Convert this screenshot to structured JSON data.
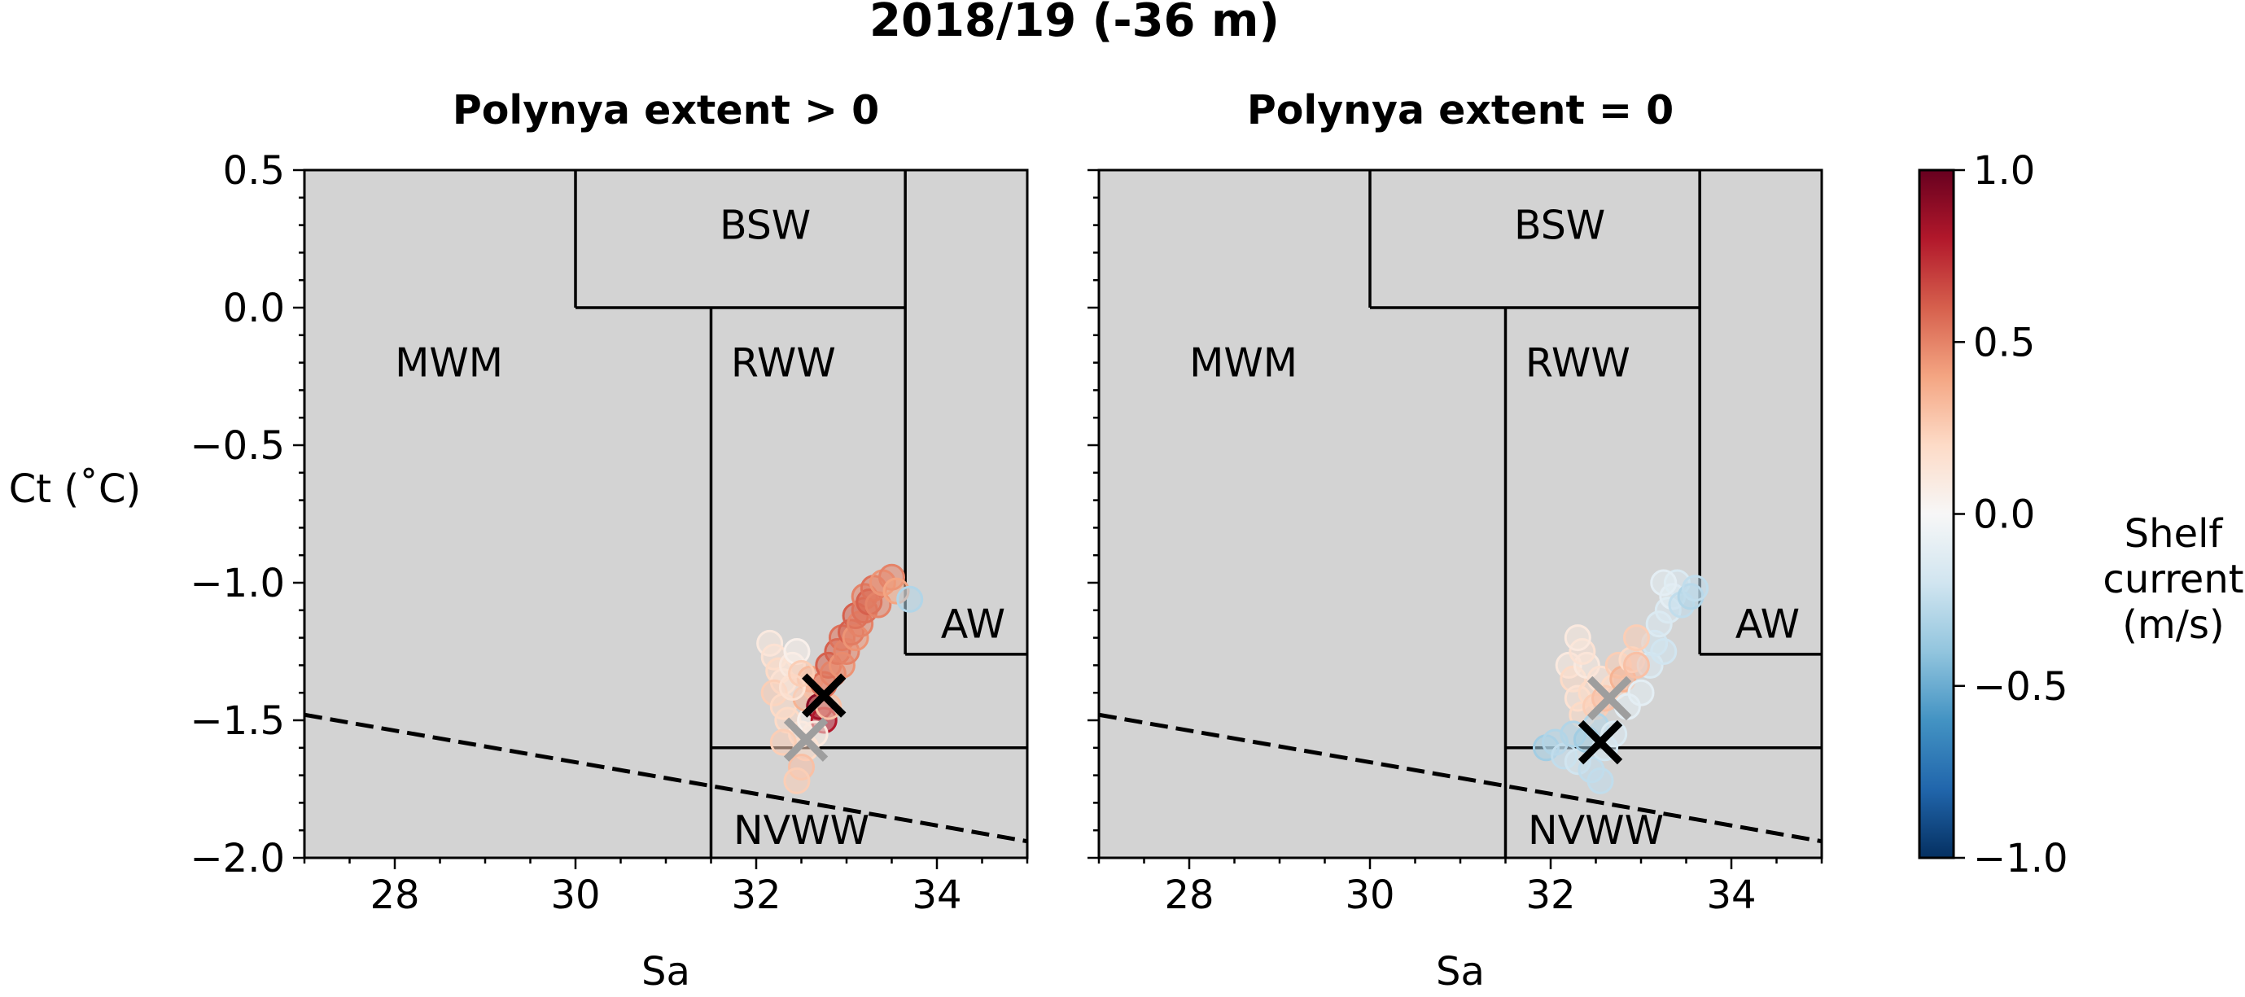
{
  "figure": {
    "suptitle": "2018/19 (-36 m)"
  },
  "chart_data": [
    {
      "type": "scatter",
      "title": "Polynya extent > 0",
      "xlabel": "Sa",
      "ylabel": "Ct (˚C)",
      "xlim": [
        27,
        35
      ],
      "ylim": [
        -2.0,
        0.5
      ],
      "xticks": [
        "28",
        "30",
        "32",
        "34"
      ],
      "yticks": [
        "0.5",
        "0.0",
        "−0.5",
        "−1.0",
        "−1.5",
        "−2.0"
      ],
      "background": "#d3d3d3",
      "grid": false,
      "regions": [
        {
          "label": "MWM",
          "label_at": [
            28.6,
            -0.2
          ]
        },
        {
          "label": "BSW",
          "label_at": [
            32.1,
            0.3
          ]
        },
        {
          "label": "RWW",
          "label_at": [
            32.3,
            -0.2
          ]
        },
        {
          "label": "AW",
          "label_at": [
            34.4,
            -1.15
          ]
        },
        {
          "label": "NVWW",
          "label_at": [
            32.5,
            -1.9
          ]
        }
      ],
      "boundaries": [
        {
          "x": [
            30,
            30
          ],
          "y": [
            0.5,
            0.0
          ]
        },
        {
          "x": [
            30,
            33.65
          ],
          "y": [
            0.0,
            0.0
          ]
        },
        {
          "x": [
            31.5,
            31.5
          ],
          "y": [
            0.0,
            -2.0
          ]
        },
        {
          "x": [
            33.65,
            33.65
          ],
          "y": [
            0.5,
            -1.26
          ]
        },
        {
          "x": [
            33.65,
            35
          ],
          "y": [
            -1.26,
            -1.26
          ]
        },
        {
          "x": [
            31.5,
            35
          ],
          "y": [
            -1.6,
            -1.6
          ]
        }
      ],
      "freezing_line": {
        "x": [
          27,
          35
        ],
        "y": [
          -1.48,
          -1.94
        ],
        "style": "dashed"
      },
      "points": [
        {
          "x": 32.15,
          "y": -1.22,
          "c": 0.1
        },
        {
          "x": 32.2,
          "y": -1.27,
          "c": 0.15
        },
        {
          "x": 32.25,
          "y": -1.32,
          "c": 0.2
        },
        {
          "x": 32.3,
          "y": -1.36,
          "c": 0.15
        },
        {
          "x": 32.2,
          "y": -1.4,
          "c": 0.25
        },
        {
          "x": 32.3,
          "y": -1.45,
          "c": 0.2
        },
        {
          "x": 32.4,
          "y": -1.3,
          "c": 0.1
        },
        {
          "x": 32.45,
          "y": -1.25,
          "c": 0.05
        },
        {
          "x": 32.35,
          "y": -1.5,
          "c": 0.2
        },
        {
          "x": 32.5,
          "y": -1.55,
          "c": 0.15
        },
        {
          "x": 32.55,
          "y": -1.6,
          "c": 0.2
        },
        {
          "x": 32.5,
          "y": -1.67,
          "c": 0.3
        },
        {
          "x": 32.45,
          "y": -1.72,
          "c": 0.25
        },
        {
          "x": 32.6,
          "y": -1.5,
          "c": 0.05
        },
        {
          "x": 32.55,
          "y": -1.42,
          "c": 0.35
        },
        {
          "x": 32.6,
          "y": -1.35,
          "c": 0.4
        },
        {
          "x": 32.65,
          "y": -1.38,
          "c": 0.3
        },
        {
          "x": 32.7,
          "y": -1.45,
          "c": 0.9
        },
        {
          "x": 32.75,
          "y": -1.5,
          "c": 0.8
        },
        {
          "x": 32.8,
          "y": -1.45,
          "c": 0.3
        },
        {
          "x": 32.75,
          "y": -1.37,
          "c": 0.55
        },
        {
          "x": 32.8,
          "y": -1.3,
          "c": 0.6
        },
        {
          "x": 32.85,
          "y": -1.33,
          "c": 0.5
        },
        {
          "x": 32.9,
          "y": -1.25,
          "c": 0.6
        },
        {
          "x": 32.95,
          "y": -1.2,
          "c": 0.55
        },
        {
          "x": 32.95,
          "y": -1.3,
          "c": 0.45
        },
        {
          "x": 33.0,
          "y": -1.25,
          "c": 0.5
        },
        {
          "x": 33.05,
          "y": -1.18,
          "c": 0.6
        },
        {
          "x": 33.1,
          "y": -1.2,
          "c": 0.45
        },
        {
          "x": 33.1,
          "y": -1.12,
          "c": 0.6
        },
        {
          "x": 33.15,
          "y": -1.15,
          "c": 0.5
        },
        {
          "x": 33.2,
          "y": -1.1,
          "c": 0.55
        },
        {
          "x": 33.2,
          "y": -1.05,
          "c": 0.5
        },
        {
          "x": 33.25,
          "y": -1.07,
          "c": 0.6
        },
        {
          "x": 33.3,
          "y": -1.02,
          "c": 0.55
        },
        {
          "x": 33.35,
          "y": -1.08,
          "c": 0.5
        },
        {
          "x": 33.4,
          "y": -1.0,
          "c": 0.45
        },
        {
          "x": 33.5,
          "y": -0.98,
          "c": 0.5
        },
        {
          "x": 33.55,
          "y": -1.03,
          "c": 0.4
        },
        {
          "x": 33.7,
          "y": -1.06,
          "c": -0.3
        },
        {
          "x": 32.3,
          "y": -1.58,
          "c": 0.25
        },
        {
          "x": 32.4,
          "y": -1.38,
          "c": 0.15
        },
        {
          "x": 32.5,
          "y": -1.33,
          "c": 0.25
        },
        {
          "x": 32.65,
          "y": -1.55,
          "c": 0.1
        }
      ],
      "colorscale": "RdBu_r",
      "markers": [
        {
          "x": 32.55,
          "y": -1.57,
          "color": "#9e9e9e"
        },
        {
          "x": 32.75,
          "y": -1.41,
          "color": "#000000"
        }
      ]
    },
    {
      "type": "scatter",
      "title": "Polynya extent = 0",
      "xlabel": "Sa",
      "ylabel": "",
      "xlim": [
        27,
        35
      ],
      "ylim": [
        -2.0,
        0.5
      ],
      "xticks": [
        "28",
        "30",
        "32",
        "34"
      ],
      "yticks": [],
      "background": "#d3d3d3",
      "grid": false,
      "regions": [
        {
          "label": "MWM",
          "label_at": [
            28.6,
            -0.2
          ]
        },
        {
          "label": "BSW",
          "label_at": [
            32.1,
            0.3
          ]
        },
        {
          "label": "RWW",
          "label_at": [
            32.3,
            -0.2
          ]
        },
        {
          "label": "AW",
          "label_at": [
            34.4,
            -1.15
          ]
        },
        {
          "label": "NVWW",
          "label_at": [
            32.5,
            -1.9
          ]
        }
      ],
      "boundaries": [
        {
          "x": [
            30,
            30
          ],
          "y": [
            0.5,
            0.0
          ]
        },
        {
          "x": [
            30,
            33.65
          ],
          "y": [
            0.0,
            0.0
          ]
        },
        {
          "x": [
            31.5,
            31.5
          ],
          "y": [
            0.0,
            -2.0
          ]
        },
        {
          "x": [
            33.65,
            33.65
          ],
          "y": [
            0.5,
            -1.26
          ]
        },
        {
          "x": [
            33.65,
            35
          ],
          "y": [
            -1.26,
            -1.26
          ]
        },
        {
          "x": [
            31.5,
            35
          ],
          "y": [
            -1.6,
            -1.6
          ]
        }
      ],
      "freezing_line": {
        "x": [
          27,
          35
        ],
        "y": [
          -1.48,
          -1.94
        ],
        "style": "dashed"
      },
      "points": [
        {
          "x": 32.2,
          "y": -1.3,
          "c": 0.1
        },
        {
          "x": 32.25,
          "y": -1.35,
          "c": 0.2
        },
        {
          "x": 32.3,
          "y": -1.42,
          "c": 0.15
        },
        {
          "x": 32.35,
          "y": -1.48,
          "c": 0.2
        },
        {
          "x": 32.4,
          "y": -1.3,
          "c": 0.1
        },
        {
          "x": 32.45,
          "y": -1.4,
          "c": 0.2
        },
        {
          "x": 32.5,
          "y": -1.45,
          "c": 0.25
        },
        {
          "x": 32.55,
          "y": -1.35,
          "c": 0.15
        },
        {
          "x": 32.6,
          "y": -1.42,
          "c": 0.3
        },
        {
          "x": 32.7,
          "y": -1.38,
          "c": 0.2
        },
        {
          "x": 32.75,
          "y": -1.3,
          "c": 0.25
        },
        {
          "x": 32.8,
          "y": -1.35,
          "c": 0.35
        },
        {
          "x": 32.9,
          "y": -1.28,
          "c": 0.2
        },
        {
          "x": 32.35,
          "y": -1.25,
          "c": 0.15
        },
        {
          "x": 32.3,
          "y": -1.2,
          "c": 0.1
        },
        {
          "x": 31.95,
          "y": -1.6,
          "c": -0.35
        },
        {
          "x": 32.05,
          "y": -1.58,
          "c": -0.3
        },
        {
          "x": 32.15,
          "y": -1.63,
          "c": -0.25
        },
        {
          "x": 32.25,
          "y": -1.55,
          "c": -0.3
        },
        {
          "x": 32.3,
          "y": -1.65,
          "c": -0.2
        },
        {
          "x": 32.4,
          "y": -1.57,
          "c": -0.35
        },
        {
          "x": 32.45,
          "y": -1.68,
          "c": -0.25
        },
        {
          "x": 32.5,
          "y": -1.52,
          "c": -0.3
        },
        {
          "x": 32.6,
          "y": -1.6,
          "c": -0.2
        },
        {
          "x": 32.55,
          "y": -1.72,
          "c": -0.25
        },
        {
          "x": 32.7,
          "y": -1.55,
          "c": -0.15
        },
        {
          "x": 32.85,
          "y": -1.45,
          "c": -0.1
        },
        {
          "x": 33.0,
          "y": -1.4,
          "c": -0.1
        },
        {
          "x": 33.1,
          "y": -1.3,
          "c": -0.15
        },
        {
          "x": 33.15,
          "y": -1.22,
          "c": -0.2
        },
        {
          "x": 33.2,
          "y": -1.15,
          "c": -0.15
        },
        {
          "x": 33.25,
          "y": -1.25,
          "c": -0.2
        },
        {
          "x": 33.3,
          "y": -1.1,
          "c": -0.15
        },
        {
          "x": 33.35,
          "y": -1.05,
          "c": -0.1
        },
        {
          "x": 33.4,
          "y": -1.0,
          "c": -0.15
        },
        {
          "x": 33.45,
          "y": -1.08,
          "c": -0.25
        },
        {
          "x": 33.55,
          "y": -1.05,
          "c": -0.3
        },
        {
          "x": 33.6,
          "y": -1.02,
          "c": -0.25
        },
        {
          "x": 33.25,
          "y": -1.0,
          "c": -0.1
        },
        {
          "x": 32.95,
          "y": -1.3,
          "c": 0.3
        },
        {
          "x": 32.95,
          "y": -1.2,
          "c": 0.25
        }
      ],
      "colorscale": "RdBu_r",
      "markers": [
        {
          "x": 32.65,
          "y": -1.42,
          "color": "#9e9e9e"
        },
        {
          "x": 32.55,
          "y": -1.58,
          "color": "#000000"
        }
      ]
    }
  ],
  "colorbar": {
    "label_lines": [
      "Shelf",
      "current",
      "(m/s)"
    ],
    "range": [
      -1.0,
      1.0
    ],
    "ticks": [
      {
        "value": 1.0,
        "label": "1.0"
      },
      {
        "value": 0.5,
        "label": "0.5"
      },
      {
        "value": 0.0,
        "label": "0.0"
      },
      {
        "value": -0.5,
        "label": "−0.5"
      },
      {
        "value": -1.0,
        "label": "−1.0"
      }
    ],
    "stops": [
      "#053061",
      "#2166ac",
      "#4393c3",
      "#92c5de",
      "#d1e5f0",
      "#f7f7f7",
      "#fddbc7",
      "#f4a582",
      "#d6604d",
      "#b2182b",
      "#67001f"
    ]
  }
}
